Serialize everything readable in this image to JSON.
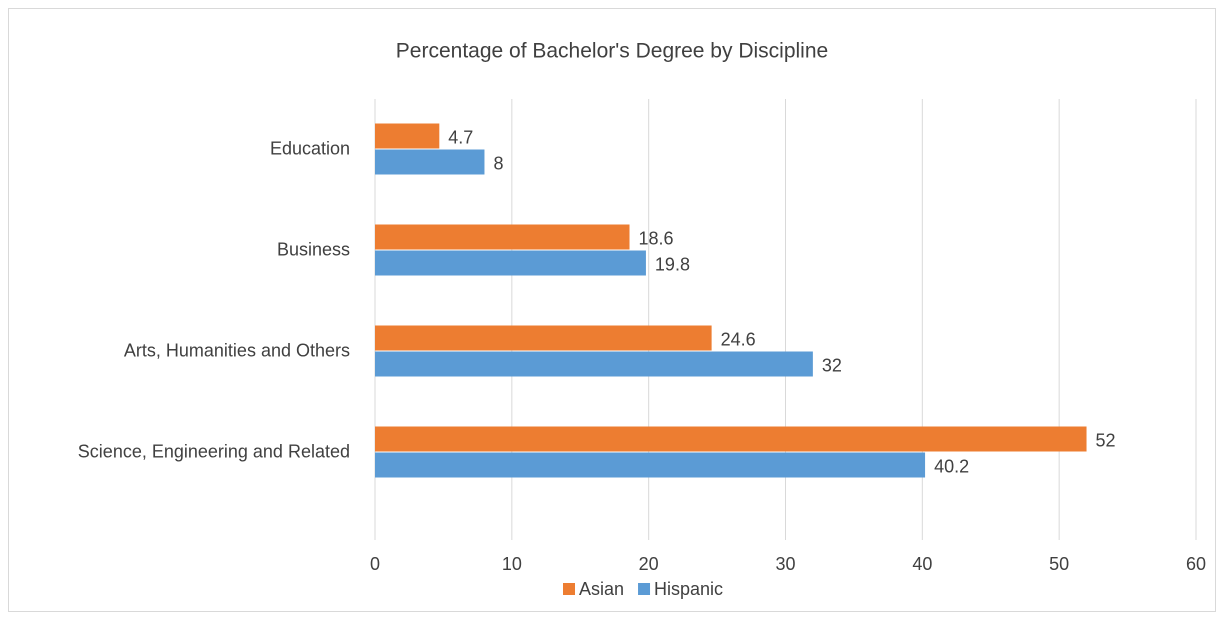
{
  "chart_data": {
    "type": "hbar",
    "title": "Percentage of Bachelor's Degree by Discipline",
    "categories": [
      "Education",
      "Business",
      "Arts, Humanities and Others",
      "Science, Engineering and Related"
    ],
    "series": [
      {
        "name": "Asian",
        "color": "#ed7d31",
        "values": [
          4.7,
          18.6,
          24.6,
          52
        ]
      },
      {
        "name": "Hispanic",
        "color": "#5b9bd5",
        "values": [
          8,
          19.8,
          32,
          40.2
        ]
      }
    ],
    "xlim": [
      0,
      60
    ],
    "xticks": [
      0,
      10,
      20,
      30,
      40,
      50,
      60
    ],
    "grid": true,
    "legend": "bottom"
  }
}
